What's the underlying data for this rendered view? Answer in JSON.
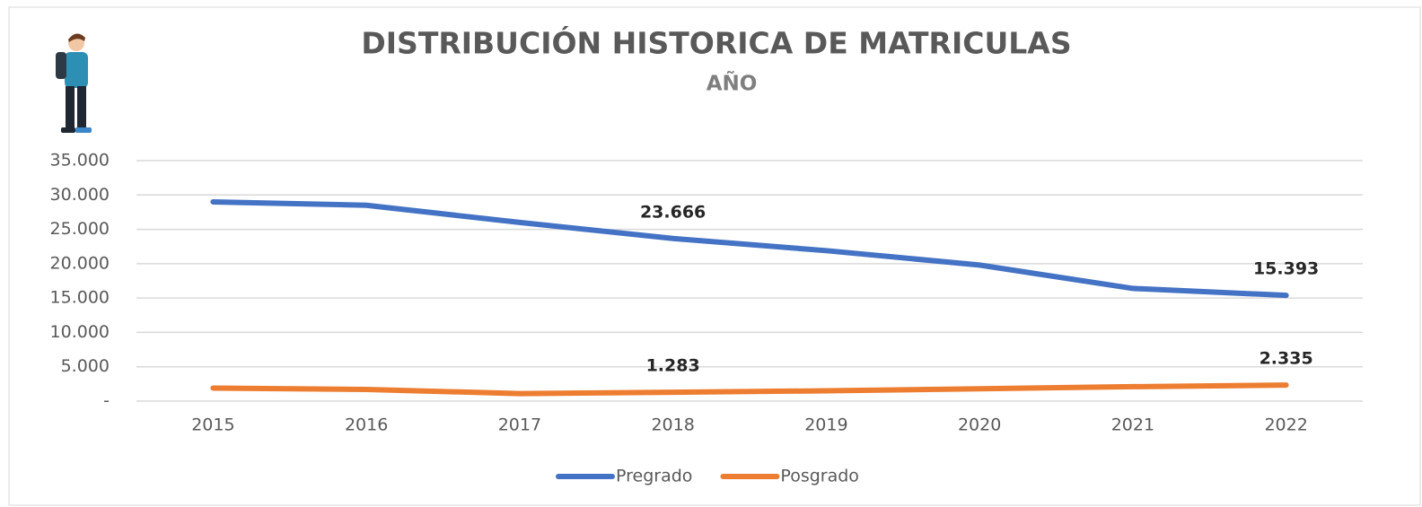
{
  "chart_data": {
    "type": "line",
    "title": "DISTRIBUCIÓN HISTORICA DE MATRICULAS",
    "subtitle": "AÑO",
    "categories": [
      "2015",
      "2016",
      "2017",
      "2018",
      "2019",
      "2020",
      "2021",
      "2022"
    ],
    "series": [
      {
        "name": "Pregrado",
        "color": "#4472c4",
        "values": [
          29000,
          28500,
          26000,
          23666,
          21900,
          19800,
          16400,
          15393
        ],
        "value_labels": [
          null,
          null,
          null,
          "23.666",
          null,
          null,
          null,
          "15.393"
        ]
      },
      {
        "name": "Posgrado",
        "color": "#ed7d31",
        "values": [
          1900,
          1700,
          1100,
          1283,
          1500,
          1800,
          2100,
          2335
        ],
        "value_labels": [
          null,
          null,
          null,
          "1.283",
          null,
          null,
          null,
          "2.335"
        ]
      }
    ],
    "ylim": [
      0,
      35000
    ],
    "yticks": [
      {
        "value": 0,
        "label": "-"
      },
      {
        "value": 5000,
        "label": "5.000"
      },
      {
        "value": 10000,
        "label": "10.000"
      },
      {
        "value": 15000,
        "label": "15.000"
      },
      {
        "value": 20000,
        "label": "20.000"
      },
      {
        "value": 25000,
        "label": "25.000"
      },
      {
        "value": 30000,
        "label": "30.000"
      },
      {
        "value": 35000,
        "label": "35.000"
      }
    ],
    "grid": true,
    "legend": "bottom"
  }
}
